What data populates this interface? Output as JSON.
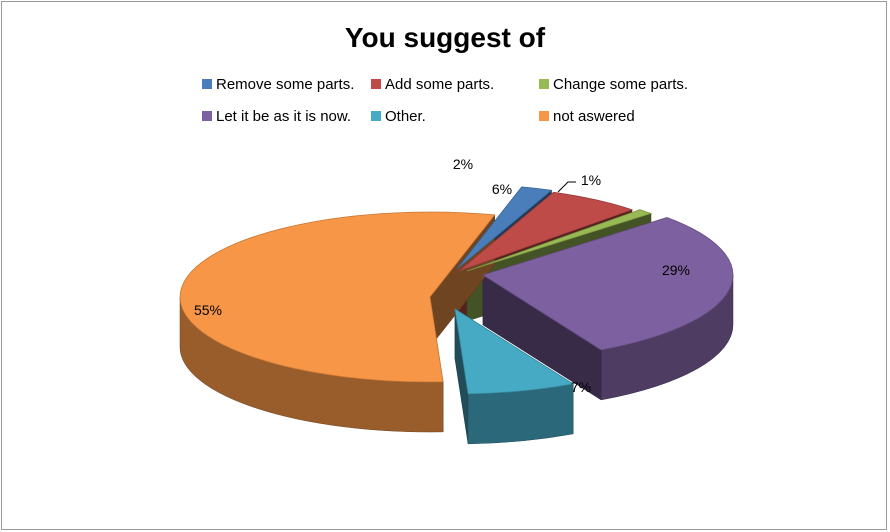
{
  "chart_data": {
    "type": "pie",
    "variant": "3d-exploded",
    "title": "You suggest of",
    "legend_position": "top",
    "categories": [
      "Remove some parts.",
      "Add some parts.",
      "Change some parts.",
      "Let it be as it is now.",
      "Other.",
      "not aswered"
    ],
    "values": [
      2,
      6,
      1,
      29,
      7,
      55
    ],
    "labels": [
      "2%",
      "6%",
      "1%",
      "29%",
      "7%",
      "55%"
    ],
    "unit": "%",
    "colors": [
      "#4a7ebb",
      "#be4b48",
      "#98b954",
      "#7d60a0",
      "#46aac5",
      "#f79646"
    ]
  }
}
